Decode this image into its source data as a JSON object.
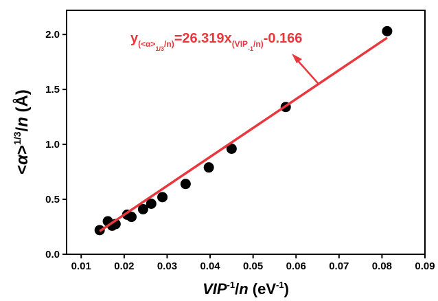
{
  "chart_data": {
    "type": "scatter",
    "x_label": [
      "VIP",
      "-1",
      "/",
      "n",
      " (eV",
      "-1",
      ")"
    ],
    "y_label": [
      "<",
      "α",
      ">",
      "1/3",
      "/",
      "n",
      " (Å)"
    ],
    "annotation": [
      "y",
      "(<α>",
      "1/3",
      "/n)",
      "=26.319x",
      "(VIP",
      "-1",
      "/n)",
      "-0.166"
    ],
    "xlim": [
      0.0066,
      0.09
    ],
    "ylim": [
      0,
      2.22
    ],
    "xticks": [
      0.01,
      0.02,
      0.03,
      0.04,
      0.05,
      0.06,
      0.07,
      0.08,
      0.09
    ],
    "yticks": [
      {
        "value": 0,
        "label": "0.0"
      },
      0.5,
      {
        "value": 1,
        "label": "1.0"
      },
      1.5,
      {
        "value": 2,
        "label": "2.0"
      }
    ],
    "series": [
      {
        "color": "#000000",
        "x": [
          0.0143,
          0.0162,
          0.0172,
          0.018,
          0.0207,
          0.0217,
          0.0244,
          0.0263,
          0.0289,
          0.0343,
          0.0397,
          0.045,
          0.0576,
          0.0812
        ],
        "values": [
          0.22,
          0.3,
          0.26,
          0.275,
          0.36,
          0.34,
          0.41,
          0.46,
          0.52,
          0.64,
          0.79,
          0.96,
          1.34,
          2.03
        ]
      },
      {
        "color": "#e8383d",
        "x": [
          0.0143,
          0.0812
        ],
        "values": [
          0.21,
          1.97
        ]
      }
    ]
  }
}
